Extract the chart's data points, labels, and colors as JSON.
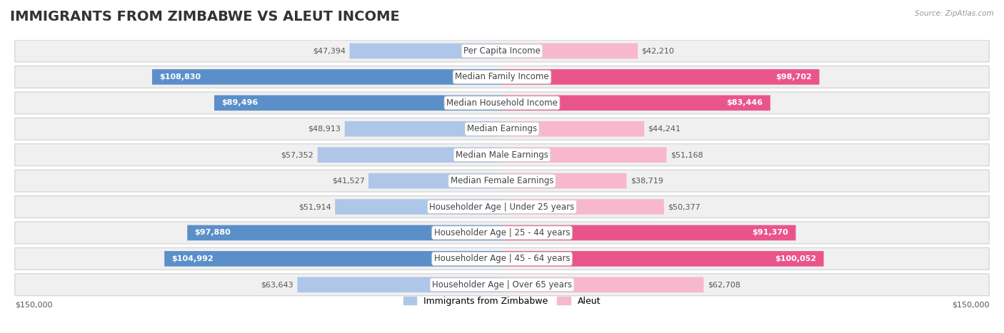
{
  "title": "IMMIGRANTS FROM ZIMBABWE VS ALEUT INCOME",
  "source": "Source: ZipAtlas.com",
  "categories": [
    "Per Capita Income",
    "Median Family Income",
    "Median Household Income",
    "Median Earnings",
    "Median Male Earnings",
    "Median Female Earnings",
    "Householder Age | Under 25 years",
    "Householder Age | 25 - 44 years",
    "Householder Age | 45 - 64 years",
    "Householder Age | Over 65 years"
  ],
  "zimbabwe_values": [
    47394,
    108830,
    89496,
    48913,
    57352,
    41527,
    51914,
    97880,
    104992,
    63643
  ],
  "aleut_values": [
    42210,
    98702,
    83446,
    44241,
    51168,
    38719,
    50377,
    91370,
    100052,
    62708
  ],
  "zimbabwe_color_light": "#aec6e8",
  "zimbabwe_color_dark": "#5b8fc9",
  "aleut_color_light": "#f7b8ce",
  "aleut_color_dark": "#e9558a",
  "max_value": 150000,
  "background_color": "#ffffff",
  "row_bg_color": "#f0f0f0",
  "row_border_color": "#d0d0d0",
  "title_fontsize": 14,
  "label_fontsize": 8.5,
  "value_fontsize": 8,
  "legend_fontsize": 9,
  "axis_label": "$150,000",
  "zimbabwe_label": "Immigrants from Zimbabwe",
  "aleut_label": "Aleut",
  "dark_threshold": 75000
}
